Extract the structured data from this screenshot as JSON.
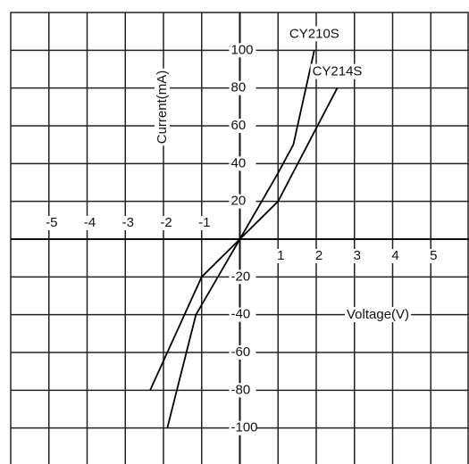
{
  "chart_data": {
    "type": "line",
    "xlabel": "Voltage(V)",
    "ylabel": "Current(mA)",
    "xlim": [
      -6,
      6
    ],
    "ylim": [
      -120,
      120
    ],
    "xticks": [
      -5,
      -4,
      -3,
      -2,
      -1,
      1,
      2,
      3,
      4,
      5
    ],
    "yticks": [
      -100,
      -80,
      -60,
      -40,
      -20,
      20,
      40,
      60,
      80,
      100
    ],
    "grid": true,
    "series": [
      {
        "name": "CY210S",
        "color": "#000000",
        "x": [
          -1.9,
          -1.15,
          0,
          1,
          1.4,
          1.95
        ],
        "values": [
          -100,
          -40,
          0,
          35,
          50,
          100
        ]
      },
      {
        "name": "CY214S",
        "color": "#000000",
        "x": [
          -2.35,
          -1,
          0,
          1,
          2.55
        ],
        "values": [
          -80,
          -20,
          0,
          20,
          80
        ]
      }
    ]
  }
}
